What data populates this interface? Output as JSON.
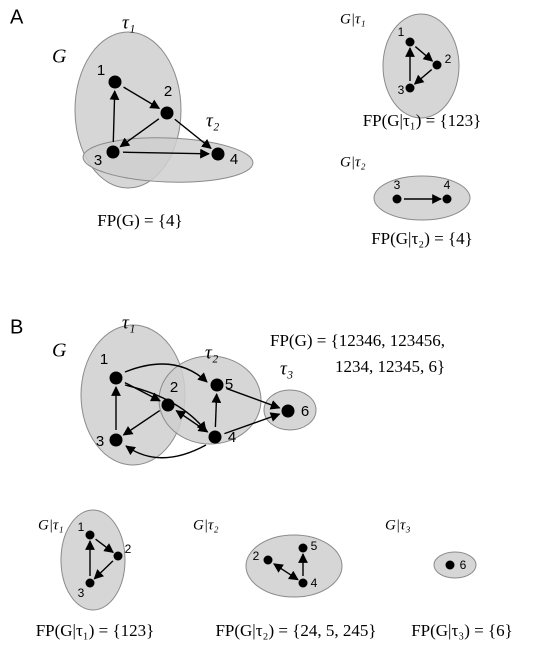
{
  "panel_a": {
    "label": "A",
    "graph": {
      "name": "G",
      "sets": [
        "τ₁",
        "τ₂"
      ],
      "nodes": [
        "1",
        "2",
        "3",
        "4"
      ],
      "fp": "FP(G) = {4}"
    },
    "subgraphs": [
      {
        "name": "G|τ₁",
        "nodes": [
          "1",
          "2",
          "3"
        ],
        "fp": "FP(G|τ₁) = {123}"
      },
      {
        "name": "G|τ₂",
        "nodes": [
          "3",
          "4"
        ],
        "fp": "FP(G|τ₂) = {4}"
      }
    ]
  },
  "panel_b": {
    "label": "B",
    "graph": {
      "name": "G",
      "sets": [
        "τ₁",
        "τ₂",
        "τ₃"
      ],
      "nodes": [
        "1",
        "2",
        "3",
        "4",
        "5",
        "6"
      ],
      "fp": [
        "FP(G) = {12346, 123456,",
        "1234, 12345, 6}"
      ]
    },
    "subgraphs": [
      {
        "name": "G|τ₁",
        "nodes": [
          "1",
          "2",
          "3"
        ],
        "fp": "FP(G|τ₁) = {123}"
      },
      {
        "name": "G|τ₂",
        "nodes": [
          "2",
          "5",
          "4"
        ],
        "fp": "FP(G|τ₂) = {24, 5, 245}"
      },
      {
        "name": "G|τ₃",
        "nodes": [
          "6"
        ],
        "fp": "FP(G|τ₃) = {6}"
      }
    ]
  }
}
